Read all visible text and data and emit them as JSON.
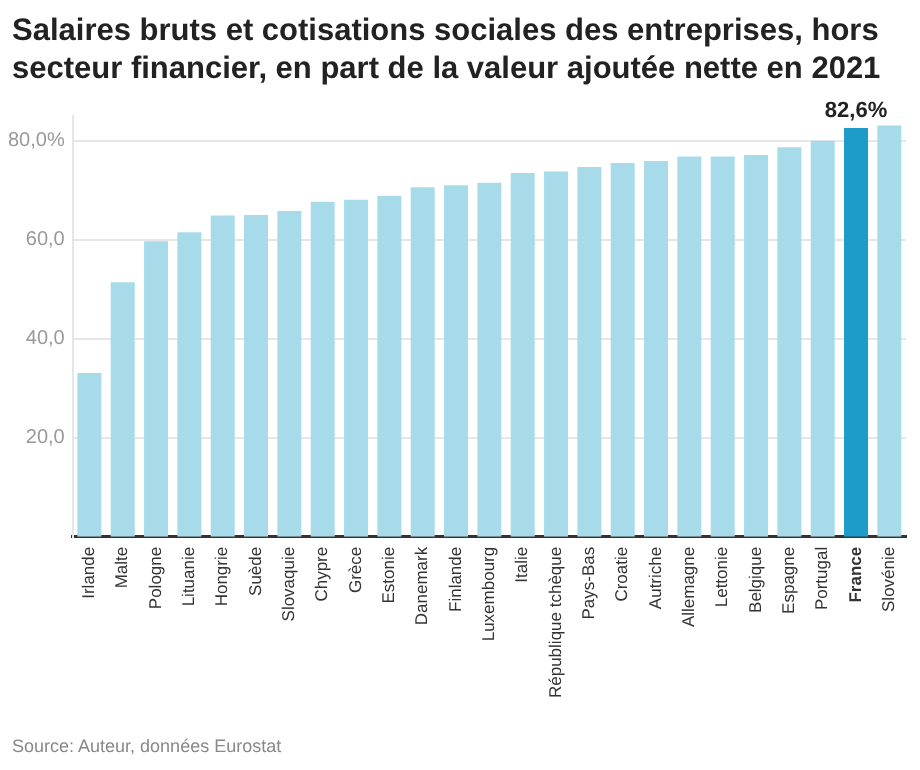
{
  "chart_data": {
    "type": "bar",
    "title": "Salaires bruts et cotisations sociales des entreprises, hors secteur financier, en part de la valeur ajoutée nette en 2021",
    "categories": [
      "Irlande",
      "Malte",
      "Pologne",
      "Lituanie",
      "Hongrie",
      "Suède",
      "Slovaquie",
      "Chypre",
      "Grèce",
      "Estonie",
      "Danemark",
      "Finlande",
      "Luxembourg",
      "Italie",
      "République tchèque",
      "Pays-Bas",
      "Croatie",
      "Autriche",
      "Allemagne",
      "Lettonie",
      "Belgique",
      "Espagne",
      "Portugal",
      "France",
      "Slovénie"
    ],
    "values": [
      33.1,
      51.4,
      59.7,
      61.5,
      64.9,
      65.0,
      65.8,
      67.7,
      68.1,
      68.9,
      70.6,
      71.0,
      71.5,
      73.5,
      73.8,
      74.7,
      75.5,
      75.9,
      76.8,
      76.8,
      77.1,
      78.7,
      80.0,
      82.6,
      83.1
    ],
    "colors": [
      "#a8dbea",
      "#a8dbea",
      "#a8dbea",
      "#a8dbea",
      "#a8dbea",
      "#a8dbea",
      "#a8dbea",
      "#a8dbea",
      "#a8dbea",
      "#a8dbea",
      "#a8dbea",
      "#a8dbea",
      "#a8dbea",
      "#a8dbea",
      "#a8dbea",
      "#a8dbea",
      "#a8dbea",
      "#a8dbea",
      "#a8dbea",
      "#a8dbea",
      "#a8dbea",
      "#a8dbea",
      "#a8dbea",
      "#1d9bc9",
      "#a8dbea"
    ],
    "value_labels": [
      null,
      null,
      null,
      null,
      null,
      null,
      null,
      null,
      null,
      null,
      null,
      null,
      null,
      null,
      null,
      null,
      null,
      null,
      null,
      null,
      null,
      null,
      null,
      "82,6%",
      null
    ],
    "ylim": [
      0,
      85
    ],
    "yticks": [
      {
        "value": 20,
        "label": "20,0"
      },
      {
        "value": 40,
        "label": "40,0"
      },
      {
        "value": 60,
        "label": "60,0"
      },
      {
        "value": 80,
        "label": "80,0%"
      }
    ],
    "grid": "y",
    "legend": false,
    "annotations": [
      "Source: Auteur, données Eurostat"
    ]
  }
}
